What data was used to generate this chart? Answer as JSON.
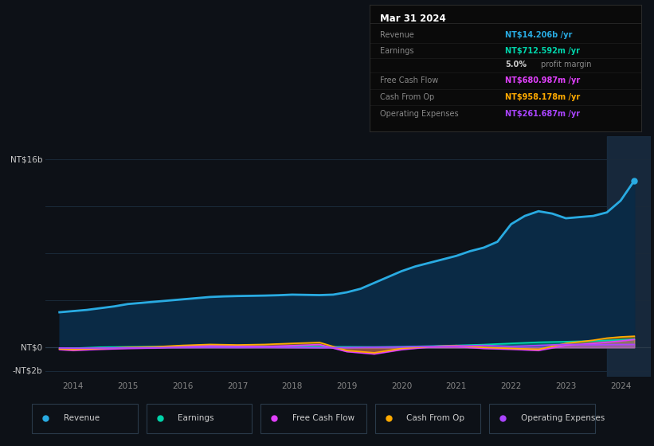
{
  "background_color": "#0d1117",
  "plot_bg_color": "#0d1b2a",
  "grid_color": "#1a2a3a",
  "ylabel_top": "NT$16b",
  "ylabel_zero": "NT$0",
  "ylabel_neg": "-NT$2b",
  "ylim_min": -2500,
  "ylim_max": 18000,
  "xlim_min": 2013.5,
  "xlim_max": 2024.55,
  "xticks": [
    2014,
    2015,
    2016,
    2017,
    2018,
    2019,
    2020,
    2021,
    2022,
    2023,
    2024
  ],
  "series": {
    "revenue": {
      "label": "Revenue",
      "color": "#29abe2",
      "fill_color": "#0a2a45",
      "values": [
        [
          2013.75,
          3000
        ],
        [
          2014.0,
          3100
        ],
        [
          2014.25,
          3200
        ],
        [
          2014.5,
          3350
        ],
        [
          2014.75,
          3500
        ],
        [
          2015.0,
          3700
        ],
        [
          2015.25,
          3800
        ],
        [
          2015.5,
          3900
        ],
        [
          2015.75,
          4000
        ],
        [
          2016.0,
          4100
        ],
        [
          2016.25,
          4200
        ],
        [
          2016.5,
          4300
        ],
        [
          2016.75,
          4350
        ],
        [
          2017.0,
          4380
        ],
        [
          2017.25,
          4400
        ],
        [
          2017.5,
          4420
        ],
        [
          2017.75,
          4450
        ],
        [
          2018.0,
          4500
        ],
        [
          2018.25,
          4480
        ],
        [
          2018.5,
          4460
        ],
        [
          2018.75,
          4500
        ],
        [
          2019.0,
          4700
        ],
        [
          2019.25,
          5000
        ],
        [
          2019.5,
          5500
        ],
        [
          2019.75,
          6000
        ],
        [
          2020.0,
          6500
        ],
        [
          2020.25,
          6900
        ],
        [
          2020.5,
          7200
        ],
        [
          2020.75,
          7500
        ],
        [
          2021.0,
          7800
        ],
        [
          2021.25,
          8200
        ],
        [
          2021.5,
          8500
        ],
        [
          2021.75,
          9000
        ],
        [
          2022.0,
          10500
        ],
        [
          2022.25,
          11200
        ],
        [
          2022.5,
          11600
        ],
        [
          2022.75,
          11400
        ],
        [
          2023.0,
          11000
        ],
        [
          2023.25,
          11100
        ],
        [
          2023.5,
          11200
        ],
        [
          2023.75,
          11500
        ],
        [
          2024.0,
          12500
        ],
        [
          2024.25,
          14206
        ]
      ]
    },
    "earnings": {
      "label": "Earnings",
      "color": "#00d4aa",
      "values": [
        [
          2013.75,
          -80
        ],
        [
          2014.0,
          -60
        ],
        [
          2014.5,
          30
        ],
        [
          2015.0,
          60
        ],
        [
          2015.5,
          80
        ],
        [
          2016.0,
          100
        ],
        [
          2016.5,
          90
        ],
        [
          2017.0,
          80
        ],
        [
          2017.5,
          90
        ],
        [
          2018.0,
          80
        ],
        [
          2018.5,
          70
        ],
        [
          2019.0,
          60
        ],
        [
          2019.5,
          50
        ],
        [
          2020.0,
          70
        ],
        [
          2020.5,
          120
        ],
        [
          2021.0,
          180
        ],
        [
          2021.5,
          250
        ],
        [
          2022.0,
          350
        ],
        [
          2022.5,
          450
        ],
        [
          2023.0,
          500
        ],
        [
          2023.5,
          560
        ],
        [
          2023.75,
          600
        ],
        [
          2024.0,
          650
        ],
        [
          2024.25,
          712
        ]
      ]
    },
    "free_cash_flow": {
      "label": "Free Cash Flow",
      "color": "#e040fb",
      "values": [
        [
          2013.75,
          -180
        ],
        [
          2014.0,
          -250
        ],
        [
          2014.5,
          -150
        ],
        [
          2015.0,
          -80
        ],
        [
          2015.5,
          -40
        ],
        [
          2016.0,
          80
        ],
        [
          2016.5,
          160
        ],
        [
          2017.0,
          120
        ],
        [
          2017.5,
          80
        ],
        [
          2018.0,
          160
        ],
        [
          2018.5,
          250
        ],
        [
          2019.0,
          -350
        ],
        [
          2019.5,
          -550
        ],
        [
          2020.0,
          -180
        ],
        [
          2020.5,
          40
        ],
        [
          2021.0,
          80
        ],
        [
          2021.5,
          -80
        ],
        [
          2022.0,
          -150
        ],
        [
          2022.5,
          -250
        ],
        [
          2023.0,
          180
        ],
        [
          2023.5,
          350
        ],
        [
          2023.75,
          450
        ],
        [
          2024.0,
          550
        ],
        [
          2024.25,
          681
        ]
      ]
    },
    "cash_from_op": {
      "label": "Cash From Op",
      "color": "#ffaa00",
      "values": [
        [
          2013.75,
          -120
        ],
        [
          2014.0,
          -170
        ],
        [
          2014.5,
          -80
        ],
        [
          2015.0,
          10
        ],
        [
          2015.5,
          60
        ],
        [
          2016.0,
          180
        ],
        [
          2016.5,
          260
        ],
        [
          2017.0,
          220
        ],
        [
          2017.5,
          260
        ],
        [
          2018.0,
          350
        ],
        [
          2018.5,
          430
        ],
        [
          2019.0,
          -260
        ],
        [
          2019.5,
          -450
        ],
        [
          2020.0,
          -80
        ],
        [
          2020.5,
          80
        ],
        [
          2021.0,
          170
        ],
        [
          2021.5,
          10
        ],
        [
          2022.0,
          -80
        ],
        [
          2022.5,
          -160
        ],
        [
          2023.0,
          350
        ],
        [
          2023.5,
          620
        ],
        [
          2023.75,
          800
        ],
        [
          2024.0,
          900
        ],
        [
          2024.25,
          958
        ]
      ]
    },
    "operating_expenses": {
      "label": "Operating Expenses",
      "color": "#aa44ff",
      "values": [
        [
          2013.75,
          -40
        ],
        [
          2014.0,
          -60
        ],
        [
          2014.5,
          -45
        ],
        [
          2015.0,
          -30
        ],
        [
          2015.5,
          -15
        ],
        [
          2016.0,
          5
        ],
        [
          2016.5,
          18
        ],
        [
          2017.0,
          8
        ],
        [
          2017.5,
          18
        ],
        [
          2018.0,
          5
        ],
        [
          2018.5,
          -15
        ],
        [
          2019.0,
          -5
        ],
        [
          2019.5,
          25
        ],
        [
          2020.0,
          45
        ],
        [
          2020.5,
          90
        ],
        [
          2021.0,
          130
        ],
        [
          2021.5,
          180
        ],
        [
          2022.0,
          90
        ],
        [
          2022.5,
          180
        ],
        [
          2023.0,
          270
        ],
        [
          2023.5,
          230
        ],
        [
          2023.75,
          250
        ],
        [
          2024.0,
          260
        ],
        [
          2024.25,
          262
        ]
      ]
    }
  },
  "tooltip": {
    "date": "Mar 31 2024",
    "bg_color": "#0a0a0a",
    "border_color": "#2a2a2a",
    "text_color": "#888888",
    "rows": [
      {
        "label": "Revenue",
        "value": "NT$14.206b /yr",
        "value_color": "#29abe2"
      },
      {
        "label": "Earnings",
        "value": "NT$712.592m /yr",
        "value_color": "#00d4aa"
      },
      {
        "label": "",
        "value2a": "5.0%",
        "value2b": " profit margin"
      },
      {
        "label": "Free Cash Flow",
        "value": "NT$680.987m /yr",
        "value_color": "#e040fb"
      },
      {
        "label": "Cash From Op",
        "value": "NT$958.178m /yr",
        "value_color": "#ffaa00"
      },
      {
        "label": "Operating Expenses",
        "value": "NT$261.687m /yr",
        "value_color": "#aa44ff"
      }
    ]
  },
  "legend": [
    {
      "label": "Revenue",
      "color": "#29abe2"
    },
    {
      "label": "Earnings",
      "color": "#00d4aa"
    },
    {
      "label": "Free Cash Flow",
      "color": "#e040fb"
    },
    {
      "label": "Cash From Op",
      "color": "#ffaa00"
    },
    {
      "label": "Operating Expenses",
      "color": "#aa44ff"
    }
  ],
  "highlight_x_start": 2023.75,
  "highlight_x_end": 2024.55
}
